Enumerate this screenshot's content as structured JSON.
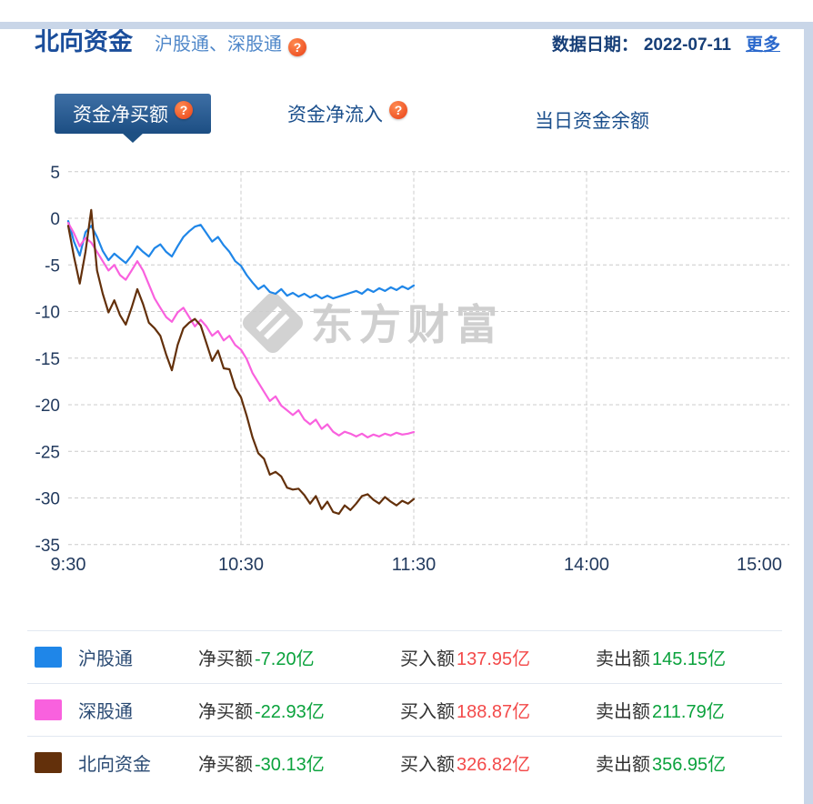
{
  "header": {
    "title": "北向资金",
    "subtitle": "沪股通、深股通",
    "date_label": "数据日期：",
    "date_value": "2022-07-11",
    "more_label": "更多"
  },
  "help": {
    "glyph": "?"
  },
  "tabs": [
    {
      "label": "资金净买额",
      "active": true
    },
    {
      "label": "资金净流入",
      "active": false
    },
    {
      "label": "当日资金余额",
      "active": false
    }
  ],
  "watermark": {
    "text": "东方财富"
  },
  "colors": {
    "accent_navy": "#1b4e9b",
    "active_tab_blue": "#1c4e83",
    "help_orange": "#e84118",
    "value_red": "#f34a4a",
    "value_green": "#0aa23c",
    "series_shanghai": "#1f86e8",
    "series_shenzhen": "#f961de",
    "series_north": "#63300b"
  },
  "chart_data": {
    "type": "line",
    "title": "",
    "xlabel": "",
    "ylabel": "",
    "x_ticks": [
      "9:30",
      "10:30",
      "11:30",
      "14:00",
      "15:00"
    ],
    "x_tick_minutes": [
      0,
      60,
      120,
      180,
      240
    ],
    "x_total_minutes": 240,
    "y_ticks": [
      5,
      0,
      -5,
      -10,
      -15,
      -20,
      -25,
      -30,
      -35
    ],
    "ylim": [
      -35,
      5
    ],
    "grid": "dashed",
    "step_minutes": 2,
    "series": [
      {
        "name": "沪股通",
        "color": "#1f86e8",
        "values": [
          -0.3,
          -2.5,
          -4.0,
          -1.5,
          -0.8,
          -2.0,
          -3.5,
          -4.5,
          -3.8,
          -4.3,
          -4.8,
          -4.0,
          -3.0,
          -3.6,
          -4.1,
          -3.2,
          -2.8,
          -3.6,
          -4.1,
          -3.0,
          -2.0,
          -1.4,
          -0.9,
          -0.7,
          -1.6,
          -2.5,
          -2.0,
          -2.9,
          -3.6,
          -4.6,
          -5.1,
          -6.1,
          -6.9,
          -7.6,
          -7.2,
          -7.9,
          -8.1,
          -7.6,
          -8.3,
          -8.0,
          -8.4,
          -8.1,
          -8.5,
          -8.2,
          -8.6,
          -8.3,
          -8.6,
          -8.4,
          -8.2,
          -8.0,
          -7.8,
          -8.1,
          -7.6,
          -7.9,
          -7.5,
          -7.8,
          -7.4,
          -7.7,
          -7.3,
          -7.6,
          -7.2
        ],
        "last_value": -7.2
      },
      {
        "name": "深股通",
        "color": "#f961de",
        "values": [
          -0.5,
          -1.6,
          -3.0,
          -2.1,
          -2.6,
          -3.6,
          -4.6,
          -5.6,
          -5.0,
          -6.1,
          -6.6,
          -5.6,
          -4.6,
          -5.6,
          -7.1,
          -8.6,
          -9.6,
          -10.6,
          -11.1,
          -10.1,
          -9.6,
          -10.6,
          -11.6,
          -10.9,
          -11.6,
          -12.6,
          -12.1,
          -13.1,
          -12.6,
          -13.6,
          -14.1,
          -15.1,
          -16.6,
          -17.6,
          -18.6,
          -19.6,
          -19.1,
          -20.1,
          -20.6,
          -21.1,
          -20.6,
          -21.6,
          -22.1,
          -21.6,
          -22.6,
          -22.1,
          -22.9,
          -23.3,
          -22.9,
          -23.1,
          -23.4,
          -23.1,
          -23.5,
          -23.2,
          -23.4,
          -23.1,
          -23.3,
          -23.0,
          -23.2,
          -23.1,
          -22.93
        ],
        "last_value": -22.93
      },
      {
        "name": "北向资金",
        "color": "#63300b",
        "values": [
          -0.8,
          -4.1,
          -7.0,
          -3.6,
          0.9,
          -5.6,
          -8.1,
          -10.1,
          -8.8,
          -10.4,
          -11.4,
          -9.6,
          -7.6,
          -9.2,
          -11.2,
          -11.8,
          -12.6,
          -14.6,
          -16.3,
          -13.6,
          -11.8,
          -11.2,
          -10.8,
          -11.5,
          -13.4,
          -15.3,
          -14.2,
          -16.1,
          -16.2,
          -18.2,
          -19.2,
          -21.2,
          -23.5,
          -25.2,
          -25.8,
          -27.5,
          -27.2,
          -27.7,
          -28.9,
          -29.1,
          -29.0,
          -29.7,
          -30.6,
          -29.8,
          -31.2,
          -30.4,
          -31.5,
          -31.7,
          -30.8,
          -31.3,
          -30.6,
          -29.8,
          -29.6,
          -30.2,
          -30.6,
          -29.9,
          -30.4,
          -30.8,
          -30.3,
          -30.6,
          -30.13
        ],
        "last_value": -30.13
      }
    ]
  },
  "legend": [
    {
      "name": "沪股通",
      "color": "#1f86e8",
      "net_label": "净买额",
      "net_value": "-7.20亿",
      "buy_label": "买入额",
      "buy_value": "137.95亿",
      "sell_label": "卖出额",
      "sell_value": "145.15亿"
    },
    {
      "name": "深股通",
      "color": "#f961de",
      "net_label": "净买额",
      "net_value": "-22.93亿",
      "buy_label": "买入额",
      "buy_value": "188.87亿",
      "sell_label": "卖出额",
      "sell_value": "211.79亿"
    },
    {
      "name": "北向资金",
      "color": "#63300b",
      "net_label": "净买额",
      "net_value": "-30.13亿",
      "buy_label": "买入额",
      "buy_value": "326.82亿",
      "sell_label": "卖出额",
      "sell_value": "356.95亿"
    }
  ]
}
